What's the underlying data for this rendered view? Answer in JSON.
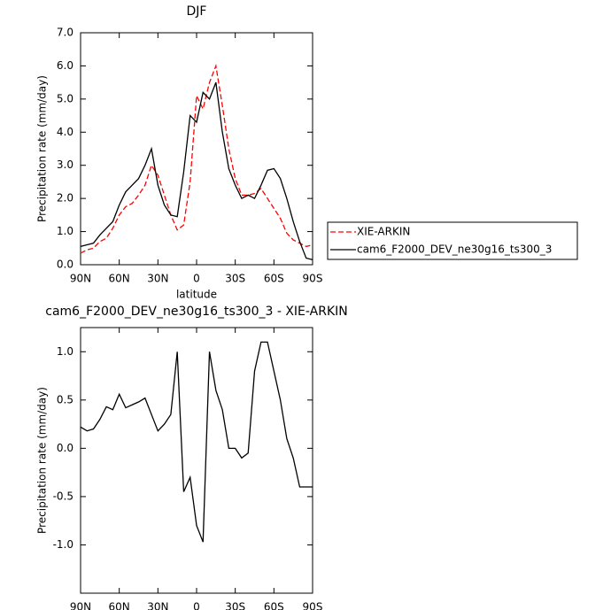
{
  "chart_data": [
    {
      "type": "line",
      "title": "DJF",
      "xlabel": "latitude",
      "ylabel": "Precipitation rate (mm/day)",
      "x": [
        90,
        85,
        80,
        75,
        70,
        65,
        60,
        55,
        50,
        45,
        40,
        35,
        30,
        25,
        20,
        15,
        10,
        5,
        0,
        -5,
        -10,
        -15,
        -20,
        -25,
        -30,
        -35,
        -40,
        -45,
        -50,
        -55,
        -60,
        -65,
        -70,
        -75,
        -80,
        -85,
        -90
      ],
      "xlim": [
        90,
        -90
      ],
      "xticks": [
        {
          "value": 90,
          "label": "90N"
        },
        {
          "value": 60,
          "label": "60N"
        },
        {
          "value": 30,
          "label": "30N"
        },
        0,
        {
          "value": -30,
          "label": "30S"
        },
        {
          "value": -60,
          "label": "60S"
        },
        {
          "value": -90,
          "label": "90S"
        }
      ],
      "ylim": [
        0,
        7
      ],
      "yticks": [
        {
          "value": 0,
          "label": "0.0"
        },
        {
          "value": 1,
          "label": "1.0"
        },
        {
          "value": 2,
          "label": "2.0"
        },
        {
          "value": 3,
          "label": "3.0"
        },
        {
          "value": 4,
          "label": "4.0"
        },
        {
          "value": 5,
          "label": "5.0"
        },
        {
          "value": 6,
          "label": "6.0"
        },
        {
          "value": 7,
          "label": "7.0"
        }
      ],
      "legend": "outside-right",
      "series": [
        {
          "name": "XIE-ARKIN",
          "color": "#ff0000",
          "style": "dashed",
          "values": [
            0.35,
            0.45,
            0.5,
            0.7,
            0.8,
            1.1,
            1.5,
            1.75,
            1.85,
            2.1,
            2.4,
            3.0,
            2.7,
            2.1,
            1.5,
            1.05,
            1.2,
            2.5,
            5.1,
            4.7,
            5.5,
            6.0,
            4.8,
            3.5,
            2.6,
            2.1,
            2.1,
            2.15,
            2.3,
            2.0,
            1.7,
            1.4,
            0.95,
            0.75,
            0.65,
            0.55,
            0.6
          ]
        },
        {
          "name": "cam6_F2000_DEV_ne30g16_ts300_3",
          "color": "#000000",
          "style": "solid",
          "values": [
            0.55,
            0.6,
            0.65,
            0.9,
            1.1,
            1.3,
            1.8,
            2.2,
            2.4,
            2.6,
            3.0,
            3.5,
            2.4,
            1.8,
            1.5,
            1.45,
            2.8,
            4.5,
            4.3,
            5.2,
            5.0,
            5.5,
            4.0,
            2.9,
            2.4,
            2.0,
            2.1,
            2.0,
            2.4,
            2.85,
            2.9,
            2.6,
            2.0,
            1.3,
            0.7,
            0.2,
            0.15
          ]
        }
      ]
    },
    {
      "type": "line",
      "title": "cam6_F2000_DEV_ne30g16_ts300_3 - XIE-ARKIN",
      "xlabel": "latitude",
      "ylabel": "Precipitation rate (mm/day)",
      "x": [
        90,
        85,
        80,
        75,
        70,
        65,
        60,
        55,
        50,
        45,
        40,
        35,
        30,
        25,
        20,
        15,
        10,
        5,
        0,
        -5,
        -10,
        -15,
        -20,
        -25,
        -30,
        -35,
        -40,
        -45,
        -50,
        -55,
        -60,
        -65,
        -70,
        -75,
        -80,
        -85,
        -90
      ],
      "xlim": [
        90,
        -90
      ],
      "xticks": [
        {
          "value": 90,
          "label": "90N"
        },
        {
          "value": 60,
          "label": "60N"
        },
        {
          "value": 30,
          "label": "30N"
        },
        0,
        {
          "value": -30,
          "label": "30S"
        },
        {
          "value": -60,
          "label": "60S"
        },
        {
          "value": -90,
          "label": "90S"
        }
      ],
      "ylim": [
        -1.5,
        1.25
      ],
      "yticks": [
        {
          "value": -1,
          "label": "-1.0"
        },
        {
          "value": -0.5,
          "label": "-0.5"
        },
        {
          "value": 0,
          "label": "0.0"
        },
        {
          "value": 0.5,
          "label": "0.5"
        },
        {
          "value": 1,
          "label": "1.0"
        }
      ],
      "color": "#000000",
      "values": [
        0.22,
        0.18,
        0.2,
        0.3,
        0.43,
        0.4,
        0.56,
        0.42,
        0.45,
        0.48,
        0.52,
        0.35,
        0.18,
        0.25,
        0.35,
        1.0,
        -0.45,
        -0.3,
        -0.8,
        -0.97,
        1.0,
        0.6,
        0.4,
        0.0,
        0.0,
        -0.1,
        -0.05,
        0.8,
        1.1,
        1.1,
        0.8,
        0.5,
        0.1,
        -0.1,
        -0.4,
        -0.4,
        -0.4
      ]
    }
  ]
}
